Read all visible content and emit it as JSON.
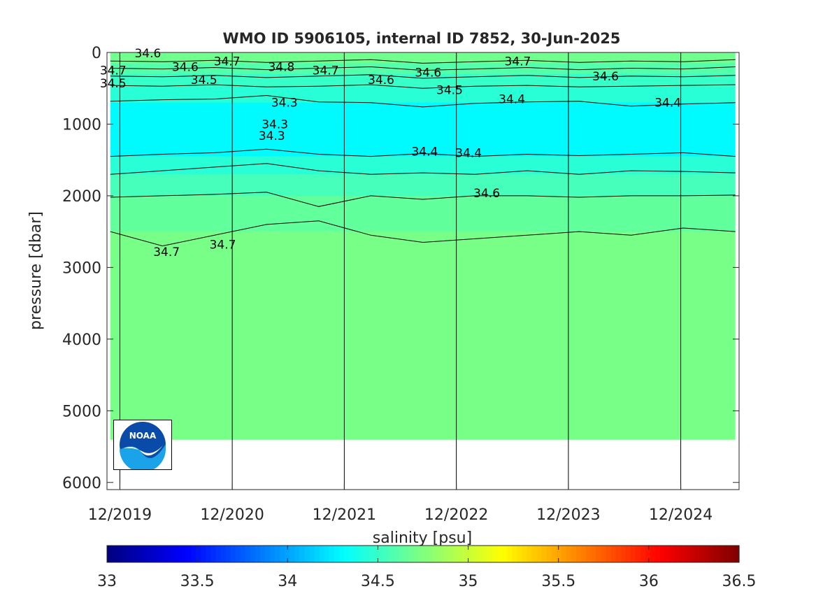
{
  "chart_data": {
    "type": "heatmap",
    "title": "WMO ID 5906105, internal ID 7852, 30-Jun-2025",
    "ylabel": "pressure [dbar]",
    "colorbar_label": "salinity [psu]",
    "y_reversed": true,
    "ylim": [
      6100,
      0
    ],
    "xlim": [
      "2019-11-20",
      "2025-07-10"
    ],
    "y_ticks": [
      "0",
      "1000",
      "2000",
      "3000",
      "4000",
      "5000",
      "6000"
    ],
    "x_ticks": [
      "12/2019",
      "12/2020",
      "12/2021",
      "12/2022",
      "12/2023",
      "12/2024"
    ],
    "colorbar": {
      "range": [
        33,
        36.5
      ],
      "colormap": "jet",
      "ticks": [
        "33",
        "33.5",
        "34",
        "34.5",
        "35",
        "35.5",
        "36",
        "36.5"
      ]
    },
    "layers_psu": [
      {
        "pressure_range": [
          0,
          150
        ],
        "salinity": 34.7
      },
      {
        "pressure_range": [
          150,
          300
        ],
        "salinity": 34.6
      },
      {
        "pressure_range": [
          300,
          480
        ],
        "salinity": 34.5
      },
      {
        "pressure_range": [
          480,
          700
        ],
        "salinity": 34.45
      },
      {
        "pressure_range": [
          700,
          1450
        ],
        "salinity": 34.3
      },
      {
        "pressure_range": [
          1450,
          1700
        ],
        "salinity": 34.45
      },
      {
        "pressure_range": [
          1700,
          2000
        ],
        "salinity": 34.55
      },
      {
        "pressure_range": [
          2000,
          2500
        ],
        "salinity": 34.65
      },
      {
        "pressure_range": [
          2500,
          5400
        ],
        "salinity": 34.72
      }
    ],
    "contour_lines": [
      {
        "level": "34.7",
        "pressure": [
          120,
          130,
          110,
          140,
          120,
          100,
          150,
          130,
          110,
          140,
          120,
          130,
          100
        ]
      },
      {
        "level": "34.6",
        "pressure": [
          220,
          230,
          210,
          240,
          220,
          200,
          250,
          230,
          210,
          240,
          220,
          230,
          200
        ]
      },
      {
        "level": "34.5",
        "pressure": [
          330,
          340,
          320,
          350,
          330,
          310,
          360,
          340,
          320,
          350,
          330,
          340,
          320
        ]
      },
      {
        "level": "34.4",
        "pressure": [
          460,
          470,
          450,
          480,
          470,
          450,
          500,
          470,
          460,
          480,
          470,
          460,
          450
        ]
      },
      {
        "level": "34.3",
        "pressure": [
          680,
          660,
          650,
          600,
          690,
          700,
          760,
          710,
          690,
          680,
          750,
          720,
          700
        ]
      },
      {
        "level": "34.4",
        "pressure": [
          1450,
          1420,
          1400,
          1350,
          1420,
          1450,
          1410,
          1450,
          1420,
          1440,
          1420,
          1400,
          1450
        ]
      },
      {
        "level": "34.5",
        "pressure": [
          1700,
          1650,
          1600,
          1550,
          1650,
          1700,
          1680,
          1700,
          1650,
          1700,
          1650,
          1660,
          1680
        ]
      },
      {
        "level": "34.6",
        "pressure": [
          2020,
          2000,
          1980,
          1950,
          2150,
          2000,
          2050,
          2000,
          2000,
          2020,
          2000,
          2000,
          1990
        ]
      },
      {
        "level": "34.7",
        "pressure": [
          2500,
          2700,
          2550,
          2400,
          2350,
          2550,
          2650,
          2600,
          2550,
          2500,
          2550,
          2450,
          2500
        ]
      }
    ],
    "contour_labels": [
      {
        "text": "34.5",
        "date": "2019-12-10",
        "pressure": 430
      },
      {
        "text": "34.7",
        "date": "2019-12-10",
        "pressure": 250
      },
      {
        "text": "34.6",
        "date": "2020-04-01",
        "pressure": 10
      },
      {
        "text": "34.6",
        "date": "2020-08-01",
        "pressure": 200
      },
      {
        "text": "34.5",
        "date": "2020-10-01",
        "pressure": 380
      },
      {
        "text": "34.7",
        "date": "2020-12-15",
        "pressure": 120
      },
      {
        "text": "34.3",
        "date": "2021-06-20",
        "pressure": 700
      },
      {
        "text": "34.3",
        "date": "2021-05-20",
        "pressure": 1000
      },
      {
        "text": "34.3",
        "date": "2021-05-10",
        "pressure": 1160
      },
      {
        "text": "34.8",
        "date": "2021-06-10",
        "pressure": 200
      },
      {
        "text": "34.7",
        "date": "2021-11-01",
        "pressure": 250
      },
      {
        "text": "34.6",
        "date": "2022-05-01",
        "pressure": 380
      },
      {
        "text": "34.6",
        "date": "2022-10-01",
        "pressure": 280
      },
      {
        "text": "34.5",
        "date": "2022-12-10",
        "pressure": 520
      },
      {
        "text": "34.4",
        "date": "2022-09-20",
        "pressure": 1380
      },
      {
        "text": "34.4",
        "date": "2023-02-10",
        "pressure": 1400
      },
      {
        "text": "34.6",
        "date": "2023-04-10",
        "pressure": 1960
      },
      {
        "text": "34.4",
        "date": "2023-07-01",
        "pressure": 650
      },
      {
        "text": "34.6",
        "date": "2024-05-01",
        "pressure": 330
      },
      {
        "text": "34.4",
        "date": "2024-11-20",
        "pressure": 700
      },
      {
        "text": "34.7",
        "date": "2020-12-01",
        "pressure": 2680
      },
      {
        "text": "34.7",
        "date": "2020-06-01",
        "pressure": 2780
      },
      {
        "text": "34.7",
        "date": "2023-07-20",
        "pressure": 120
      }
    ],
    "year_boundaries": [
      "2020-01-01",
      "2021-01-01",
      "2022-01-01",
      "2023-01-01",
      "2024-01-01",
      "2025-01-01"
    ]
  },
  "logo": {
    "text": "NOAA",
    "name": "noaa-logo"
  }
}
